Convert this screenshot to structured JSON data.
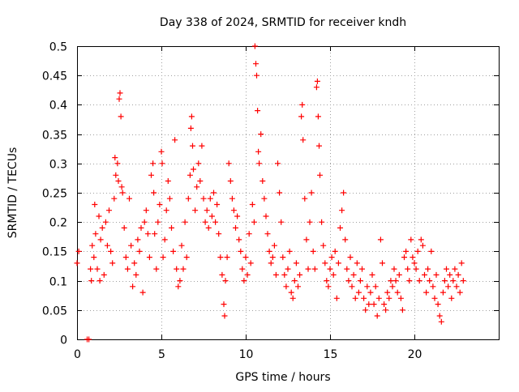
{
  "chart_data": {
    "type": "scatter",
    "title": "Day 338 of 2024, SRMTID for receiver kndh",
    "xlabel": "GPS time / hours",
    "ylabel": "SRMTID / TECUs",
    "xlim": [
      0,
      25
    ],
    "ylim": [
      0,
      0.5
    ],
    "xticks": [
      0,
      5,
      10,
      15,
      20
    ],
    "xtick_labels": [
      "0",
      "5",
      "10",
      "15",
      "20"
    ],
    "yticks": [
      0,
      0.05,
      0.1,
      0.15,
      0.2,
      0.25,
      0.3,
      0.35,
      0.4,
      0.45,
      0.5
    ],
    "ytick_labels": [
      "0",
      "0.05",
      "0.1",
      "0.15",
      "0.2",
      "0.25",
      "0.3",
      "0.35",
      "0.4",
      "0.45",
      "0.5"
    ],
    "grid": true,
    "marker": "+",
    "color": "#ff0000",
    "series": [
      {
        "name": "SRMTID",
        "points": [
          [
            0.0,
            0.13
          ],
          [
            0.1,
            0.15
          ],
          [
            0.6,
            0.0
          ],
          [
            0.7,
            0.0
          ],
          [
            0.8,
            0.12
          ],
          [
            0.85,
            0.1
          ],
          [
            0.9,
            0.16
          ],
          [
            1.0,
            0.14
          ],
          [
            1.05,
            0.23
          ],
          [
            1.1,
            0.18
          ],
          [
            1.2,
            0.12
          ],
          [
            1.3,
            0.21
          ],
          [
            1.35,
            0.1
          ],
          [
            1.4,
            0.17
          ],
          [
            1.5,
            0.19
          ],
          [
            1.6,
            0.11
          ],
          [
            1.7,
            0.2
          ],
          [
            1.8,
            0.16
          ],
          [
            1.9,
            0.22
          ],
          [
            2.0,
            0.15
          ],
          [
            2.1,
            0.13
          ],
          [
            2.2,
            0.24
          ],
          [
            2.25,
            0.31
          ],
          [
            2.3,
            0.28
          ],
          [
            2.4,
            0.3
          ],
          [
            2.45,
            0.27
          ],
          [
            2.5,
            0.41
          ],
          [
            2.55,
            0.42
          ],
          [
            2.6,
            0.38
          ],
          [
            2.65,
            0.26
          ],
          [
            2.7,
            0.25
          ],
          [
            2.8,
            0.19
          ],
          [
            2.9,
            0.14
          ],
          [
            3.0,
            0.12
          ],
          [
            3.1,
            0.24
          ],
          [
            3.2,
            0.16
          ],
          [
            3.3,
            0.09
          ],
          [
            3.4,
            0.13
          ],
          [
            3.5,
            0.11
          ],
          [
            3.6,
            0.17
          ],
          [
            3.7,
            0.15
          ],
          [
            3.8,
            0.19
          ],
          [
            3.9,
            0.08
          ],
          [
            4.0,
            0.2
          ],
          [
            4.1,
            0.22
          ],
          [
            4.2,
            0.18
          ],
          [
            4.3,
            0.14
          ],
          [
            4.4,
            0.28
          ],
          [
            4.5,
            0.3
          ],
          [
            4.55,
            0.25
          ],
          [
            4.6,
            0.18
          ],
          [
            4.7,
            0.12
          ],
          [
            4.8,
            0.2
          ],
          [
            4.9,
            0.23
          ],
          [
            5.0,
            0.32
          ],
          [
            5.05,
            0.3
          ],
          [
            5.1,
            0.14
          ],
          [
            5.2,
            0.17
          ],
          [
            5.3,
            0.22
          ],
          [
            5.4,
            0.27
          ],
          [
            5.5,
            0.24
          ],
          [
            5.6,
            0.19
          ],
          [
            5.7,
            0.15
          ],
          [
            5.8,
            0.34
          ],
          [
            5.9,
            0.12
          ],
          [
            6.0,
            0.09
          ],
          [
            6.1,
            0.1
          ],
          [
            6.2,
            0.16
          ],
          [
            6.3,
            0.12
          ],
          [
            6.4,
            0.2
          ],
          [
            6.5,
            0.14
          ],
          [
            6.6,
            0.24
          ],
          [
            6.7,
            0.28
          ],
          [
            6.75,
            0.36
          ],
          [
            6.8,
            0.38
          ],
          [
            6.85,
            0.33
          ],
          [
            6.9,
            0.29
          ],
          [
            7.0,
            0.22
          ],
          [
            7.1,
            0.26
          ],
          [
            7.2,
            0.3
          ],
          [
            7.3,
            0.27
          ],
          [
            7.4,
            0.33
          ],
          [
            7.5,
            0.24
          ],
          [
            7.6,
            0.2
          ],
          [
            7.7,
            0.22
          ],
          [
            7.8,
            0.19
          ],
          [
            7.9,
            0.24
          ],
          [
            8.0,
            0.21
          ],
          [
            8.1,
            0.25
          ],
          [
            8.2,
            0.2
          ],
          [
            8.3,
            0.23
          ],
          [
            8.4,
            0.18
          ],
          [
            8.5,
            0.14
          ],
          [
            8.6,
            0.11
          ],
          [
            8.7,
            0.06
          ],
          [
            8.75,
            0.04
          ],
          [
            8.8,
            0.1
          ],
          [
            8.9,
            0.14
          ],
          [
            9.0,
            0.3
          ],
          [
            9.1,
            0.27
          ],
          [
            9.2,
            0.24
          ],
          [
            9.3,
            0.22
          ],
          [
            9.4,
            0.19
          ],
          [
            9.5,
            0.21
          ],
          [
            9.6,
            0.17
          ],
          [
            9.7,
            0.15
          ],
          [
            9.8,
            0.12
          ],
          [
            9.9,
            0.1
          ],
          [
            10.0,
            0.14
          ],
          [
            10.1,
            0.11
          ],
          [
            10.2,
            0.18
          ],
          [
            10.3,
            0.13
          ],
          [
            10.4,
            0.23
          ],
          [
            10.5,
            0.2
          ],
          [
            10.55,
            0.5
          ],
          [
            10.6,
            0.47
          ],
          [
            10.65,
            0.45
          ],
          [
            10.7,
            0.39
          ],
          [
            10.75,
            0.32
          ],
          [
            10.8,
            0.3
          ],
          [
            10.9,
            0.35
          ],
          [
            11.0,
            0.27
          ],
          [
            11.1,
            0.24
          ],
          [
            11.2,
            0.21
          ],
          [
            11.3,
            0.18
          ],
          [
            11.4,
            0.15
          ],
          [
            11.5,
            0.13
          ],
          [
            11.6,
            0.14
          ],
          [
            11.7,
            0.16
          ],
          [
            11.8,
            0.11
          ],
          [
            11.9,
            0.3
          ],
          [
            12.0,
            0.25
          ],
          [
            12.1,
            0.2
          ],
          [
            12.2,
            0.14
          ],
          [
            12.3,
            0.11
          ],
          [
            12.4,
            0.09
          ],
          [
            12.5,
            0.12
          ],
          [
            12.6,
            0.15
          ],
          [
            12.7,
            0.08
          ],
          [
            12.8,
            0.07
          ],
          [
            12.9,
            0.1
          ],
          [
            13.0,
            0.13
          ],
          [
            13.1,
            0.09
          ],
          [
            13.2,
            0.11
          ],
          [
            13.3,
            0.38
          ],
          [
            13.35,
            0.4
          ],
          [
            13.4,
            0.34
          ],
          [
            13.5,
            0.24
          ],
          [
            13.6,
            0.17
          ],
          [
            13.7,
            0.12
          ],
          [
            13.8,
            0.2
          ],
          [
            13.9,
            0.25
          ],
          [
            14.0,
            0.15
          ],
          [
            14.1,
            0.12
          ],
          [
            14.2,
            0.43
          ],
          [
            14.25,
            0.44
          ],
          [
            14.3,
            0.38
          ],
          [
            14.35,
            0.33
          ],
          [
            14.4,
            0.28
          ],
          [
            14.5,
            0.2
          ],
          [
            14.6,
            0.16
          ],
          [
            14.7,
            0.13
          ],
          [
            14.8,
            0.1
          ],
          [
            14.9,
            0.09
          ],
          [
            15.0,
            0.12
          ],
          [
            15.1,
            0.14
          ],
          [
            15.2,
            0.11
          ],
          [
            15.3,
            0.15
          ],
          [
            15.4,
            0.07
          ],
          [
            15.5,
            0.13
          ],
          [
            15.6,
            0.19
          ],
          [
            15.7,
            0.22
          ],
          [
            15.8,
            0.25
          ],
          [
            15.9,
            0.17
          ],
          [
            16.0,
            0.12
          ],
          [
            16.1,
            0.1
          ],
          [
            16.2,
            0.14
          ],
          [
            16.3,
            0.09
          ],
          [
            16.4,
            0.11
          ],
          [
            16.5,
            0.07
          ],
          [
            16.6,
            0.13
          ],
          [
            16.7,
            0.08
          ],
          [
            16.8,
            0.1
          ],
          [
            16.9,
            0.12
          ],
          [
            17.0,
            0.07
          ],
          [
            17.1,
            0.05
          ],
          [
            17.2,
            0.09
          ],
          [
            17.3,
            0.06
          ],
          [
            17.4,
            0.08
          ],
          [
            17.5,
            0.11
          ],
          [
            17.6,
            0.06
          ],
          [
            17.7,
            0.09
          ],
          [
            17.8,
            0.04
          ],
          [
            17.9,
            0.07
          ],
          [
            18.0,
            0.17
          ],
          [
            18.1,
            0.13
          ],
          [
            18.2,
            0.06
          ],
          [
            18.3,
            0.05
          ],
          [
            18.4,
            0.08
          ],
          [
            18.5,
            0.07
          ],
          [
            18.6,
            0.1
          ],
          [
            18.7,
            0.09
          ],
          [
            18.8,
            0.12
          ],
          [
            18.9,
            0.1
          ],
          [
            19.0,
            0.08
          ],
          [
            19.1,
            0.11
          ],
          [
            19.2,
            0.07
          ],
          [
            19.3,
            0.05
          ],
          [
            19.4,
            0.14
          ],
          [
            19.5,
            0.15
          ],
          [
            19.6,
            0.12
          ],
          [
            19.7,
            0.1
          ],
          [
            19.8,
            0.17
          ],
          [
            19.9,
            0.14
          ],
          [
            20.0,
            0.13
          ],
          [
            20.1,
            0.12
          ],
          [
            20.2,
            0.15
          ],
          [
            20.3,
            0.1
          ],
          [
            20.4,
            0.17
          ],
          [
            20.5,
            0.16
          ],
          [
            20.6,
            0.11
          ],
          [
            20.7,
            0.08
          ],
          [
            20.8,
            0.12
          ],
          [
            20.9,
            0.1
          ],
          [
            21.0,
            0.15
          ],
          [
            21.1,
            0.09
          ],
          [
            21.2,
            0.07
          ],
          [
            21.3,
            0.11
          ],
          [
            21.4,
            0.06
          ],
          [
            21.5,
            0.04
          ],
          [
            21.6,
            0.03
          ],
          [
            21.7,
            0.08
          ],
          [
            21.8,
            0.1
          ],
          [
            21.9,
            0.12
          ],
          [
            22.0,
            0.09
          ],
          [
            22.1,
            0.11
          ],
          [
            22.2,
            0.07
          ],
          [
            22.3,
            0.1
          ],
          [
            22.4,
            0.12
          ],
          [
            22.5,
            0.09
          ],
          [
            22.6,
            0.11
          ],
          [
            22.7,
            0.08
          ],
          [
            22.8,
            0.13
          ],
          [
            22.9,
            0.1
          ]
        ]
      }
    ]
  }
}
